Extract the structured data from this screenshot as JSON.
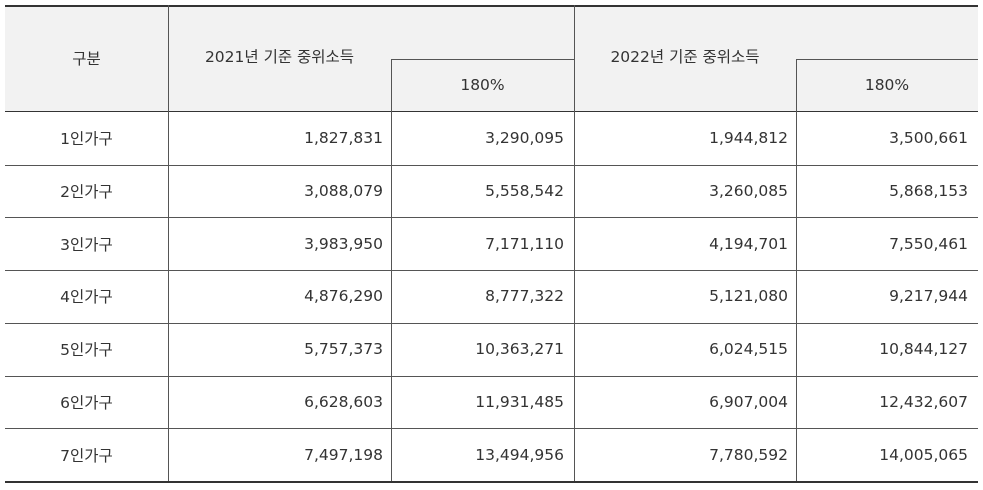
{
  "table": {
    "header": {
      "category": "구분",
      "group_2021": "2021년 기준 중위소득",
      "group_2022": "2022년 기준 중위소득",
      "pct_2021": "180%",
      "pct_2022": "180%"
    },
    "rows": [
      {
        "label": "1인가구",
        "v2021": "1,827,831",
        "p2021": "3,290,095",
        "v2022": "1,944,812",
        "p2022": "3,500,661"
      },
      {
        "label": "2인가구",
        "v2021": "3,088,079",
        "p2021": "5,558,542",
        "v2022": "3,260,085",
        "p2022": "5,868,153"
      },
      {
        "label": "3인가구",
        "v2021": "3,983,950",
        "p2021": "7,171,110",
        "v2022": "4,194,701",
        "p2022": "7,550,461"
      },
      {
        "label": "4인가구",
        "v2021": "4,876,290",
        "p2021": "8,777,322",
        "v2022": "5,121,080",
        "p2022": "9,217,944"
      },
      {
        "label": "5인가구",
        "v2021": "5,757,373",
        "p2021": "10,363,271",
        "v2022": "6,024,515",
        "p2022": "10,844,127"
      },
      {
        "label": "6인가구",
        "v2021": "6,628,603",
        "p2021": "11,931,485",
        "v2022": "6,907,004",
        "p2022": "12,432,607"
      },
      {
        "label": "7인가구",
        "v2021": "7,497,198",
        "p2021": "13,494,956",
        "v2022": "7,780,592",
        "p2022": "14,005,065"
      }
    ]
  }
}
